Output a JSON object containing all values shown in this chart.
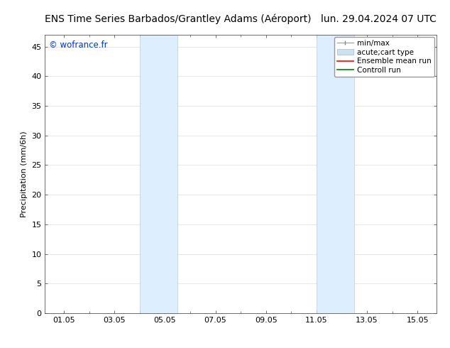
{
  "title_left": "ENS Time Series Barbados/Grantley Adams (Aéroport)",
  "title_right": "lun. 29.04.2024 07 UTC",
  "ylabel": "Precipitation (mm/6h)",
  "watermark": "© wofrance.fr",
  "watermark_color": "#0033cc",
  "ylim_bottom": 0,
  "ylim_top": 47,
  "yticks": [
    0,
    5,
    10,
    15,
    20,
    25,
    30,
    35,
    40,
    45
  ],
  "xtick_labels": [
    "01.05",
    "03.05",
    "05.05",
    "07.05",
    "09.05",
    "11.05",
    "13.05",
    "15.05"
  ],
  "xtick_positions": [
    1.0,
    3.0,
    5.0,
    7.0,
    9.0,
    11.0,
    13.0,
    15.0
  ],
  "xlim_left": 0.25,
  "xlim_right": 15.75,
  "shaded_regions": [
    {
      "x_start": 4.0,
      "x_end": 5.5
    },
    {
      "x_start": 11.0,
      "x_end": 12.5
    }
  ],
  "shade_color": "#ddeeff",
  "shade_edge_color": "#bbccdd",
  "background_color": "#ffffff",
  "plot_bg_color": "#ffffff",
  "grid_color": "#dddddd",
  "legend_labels": [
    "min/max",
    "acute;cart type",
    "Ensemble mean run",
    "Controll run"
  ],
  "legend_colors": [
    "#aaaaaa",
    "#cce0f0",
    "#ff0000",
    "#008000"
  ],
  "title_fontsize": 10,
  "tick_fontsize": 8,
  "ylabel_fontsize": 8,
  "legend_fontsize": 7.5
}
